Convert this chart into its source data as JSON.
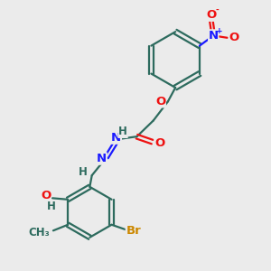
{
  "bg_color": "#ebebeb",
  "bond_color": "#2d6b5e",
  "bond_width": 1.6,
  "atom_colors": {
    "H": "#2d6b5e",
    "C": "#2d6b5e",
    "N": "#1a1aff",
    "O": "#ee1111",
    "Br": "#cc8800"
  },
  "font_size": 8.5,
  "fig_size": [
    3.0,
    3.0
  ],
  "dpi": 100,
  "xlim": [
    0,
    10
  ],
  "ylim": [
    0,
    10
  ]
}
